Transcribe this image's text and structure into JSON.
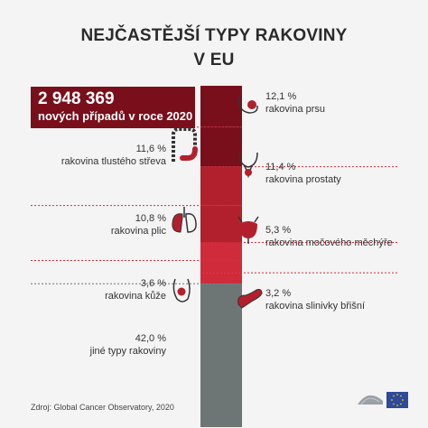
{
  "header": {
    "line1": "NEJČASTĚJŠÍ TYPY RAKOVINY",
    "line2": "V EU"
  },
  "total": {
    "number": "2 948 369",
    "label": "nových případů v roce 2020"
  },
  "colors": {
    "dark_red": "#7a0f1c",
    "red": "#b3202d",
    "bright_red": "#d02b3a",
    "grey": "#6d7575",
    "logo_blue": "#2e4a9a"
  },
  "chart_data": {
    "type": "bar",
    "title": "NEJČASTĚJŠÍ TYPY RAKOVINY V EU",
    "total_new_cases": 2948369,
    "unit": "%",
    "segments": [
      {
        "label": "rakovina prsu",
        "value": 12.1,
        "text": "12,1 %",
        "side": "right",
        "icon": "breast-icon"
      },
      {
        "label": "rakovina tlustého střeva",
        "value": 11.6,
        "text": "11,6 %",
        "side": "left",
        "icon": "colon-icon"
      },
      {
        "label": "rakovina prostaty",
        "value": 11.4,
        "text": "11,4 %",
        "side": "right",
        "icon": "prostate-icon"
      },
      {
        "label": "rakovina plic",
        "value": 10.8,
        "text": "10,8 %",
        "side": "left",
        "icon": "lungs-icon"
      },
      {
        "label": "rakovina močového měchýře",
        "value": 5.3,
        "text": "5,3 %",
        "side": "right",
        "icon": "bladder-icon"
      },
      {
        "label": "rakovina kůže",
        "value": 3.6,
        "text": "3,6 %",
        "side": "left",
        "icon": "skin-icon"
      },
      {
        "label": "rakovina slinivky břišní",
        "value": 3.2,
        "text": "3,2 %",
        "side": "right",
        "icon": "pancreas-icon"
      },
      {
        "label": "jiné typy rakoviny",
        "value": 42.0,
        "text": "42,0 %",
        "side": "left",
        "icon": ""
      }
    ]
  },
  "footer": {
    "source": "Zdroj: Global Cancer Observatory, 2020"
  }
}
